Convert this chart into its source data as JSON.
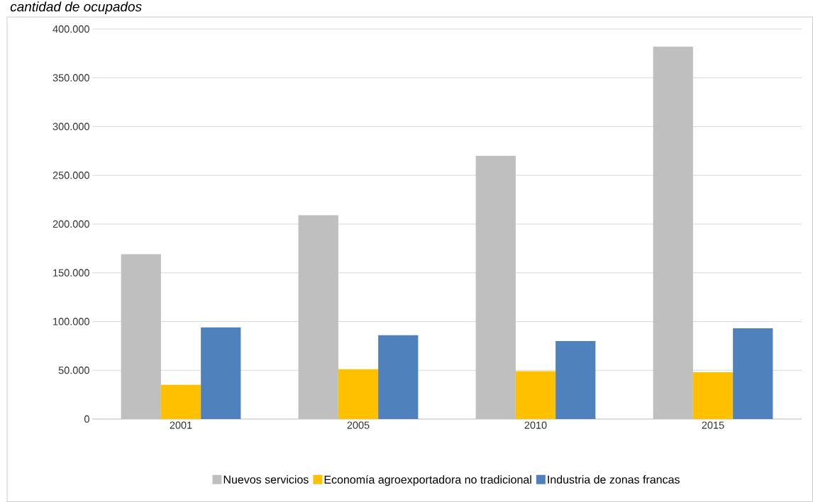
{
  "chart_data": {
    "type": "bar",
    "title": "cantidad de ocupados",
    "categories": [
      "2001",
      "2005",
      "2010",
      "2015"
    ],
    "series": [
      {
        "name": "Nuevos servicios",
        "color": "#bfbfbf",
        "values": [
          169000,
          209000,
          270000,
          382000
        ]
      },
      {
        "name": "Economía agroexportadora no tradicional",
        "color": "#ffc000",
        "values": [
          35000,
          51000,
          49000,
          48000
        ]
      },
      {
        "name": "Industria de zonas francas",
        "color": "#4f81bd",
        "values": [
          94000,
          86000,
          80000,
          93000
        ]
      }
    ],
    "ylim": [
      0,
      400000
    ],
    "yticks": [
      0,
      {
        "value": 50000,
        "label": "50.000"
      },
      {
        "value": 100000,
        "label": "100.000"
      },
      {
        "value": 150000,
        "label": "150.000"
      },
      {
        "value": 200000,
        "label": "200.000"
      },
      {
        "value": 250000,
        "label": "250.000"
      },
      {
        "value": 300000,
        "label": "300.000"
      },
      {
        "value": 350000,
        "label": "350.000"
      },
      {
        "value": 400000,
        "label": "400.000"
      }
    ],
    "grid": "y",
    "legend": "bottom"
  }
}
